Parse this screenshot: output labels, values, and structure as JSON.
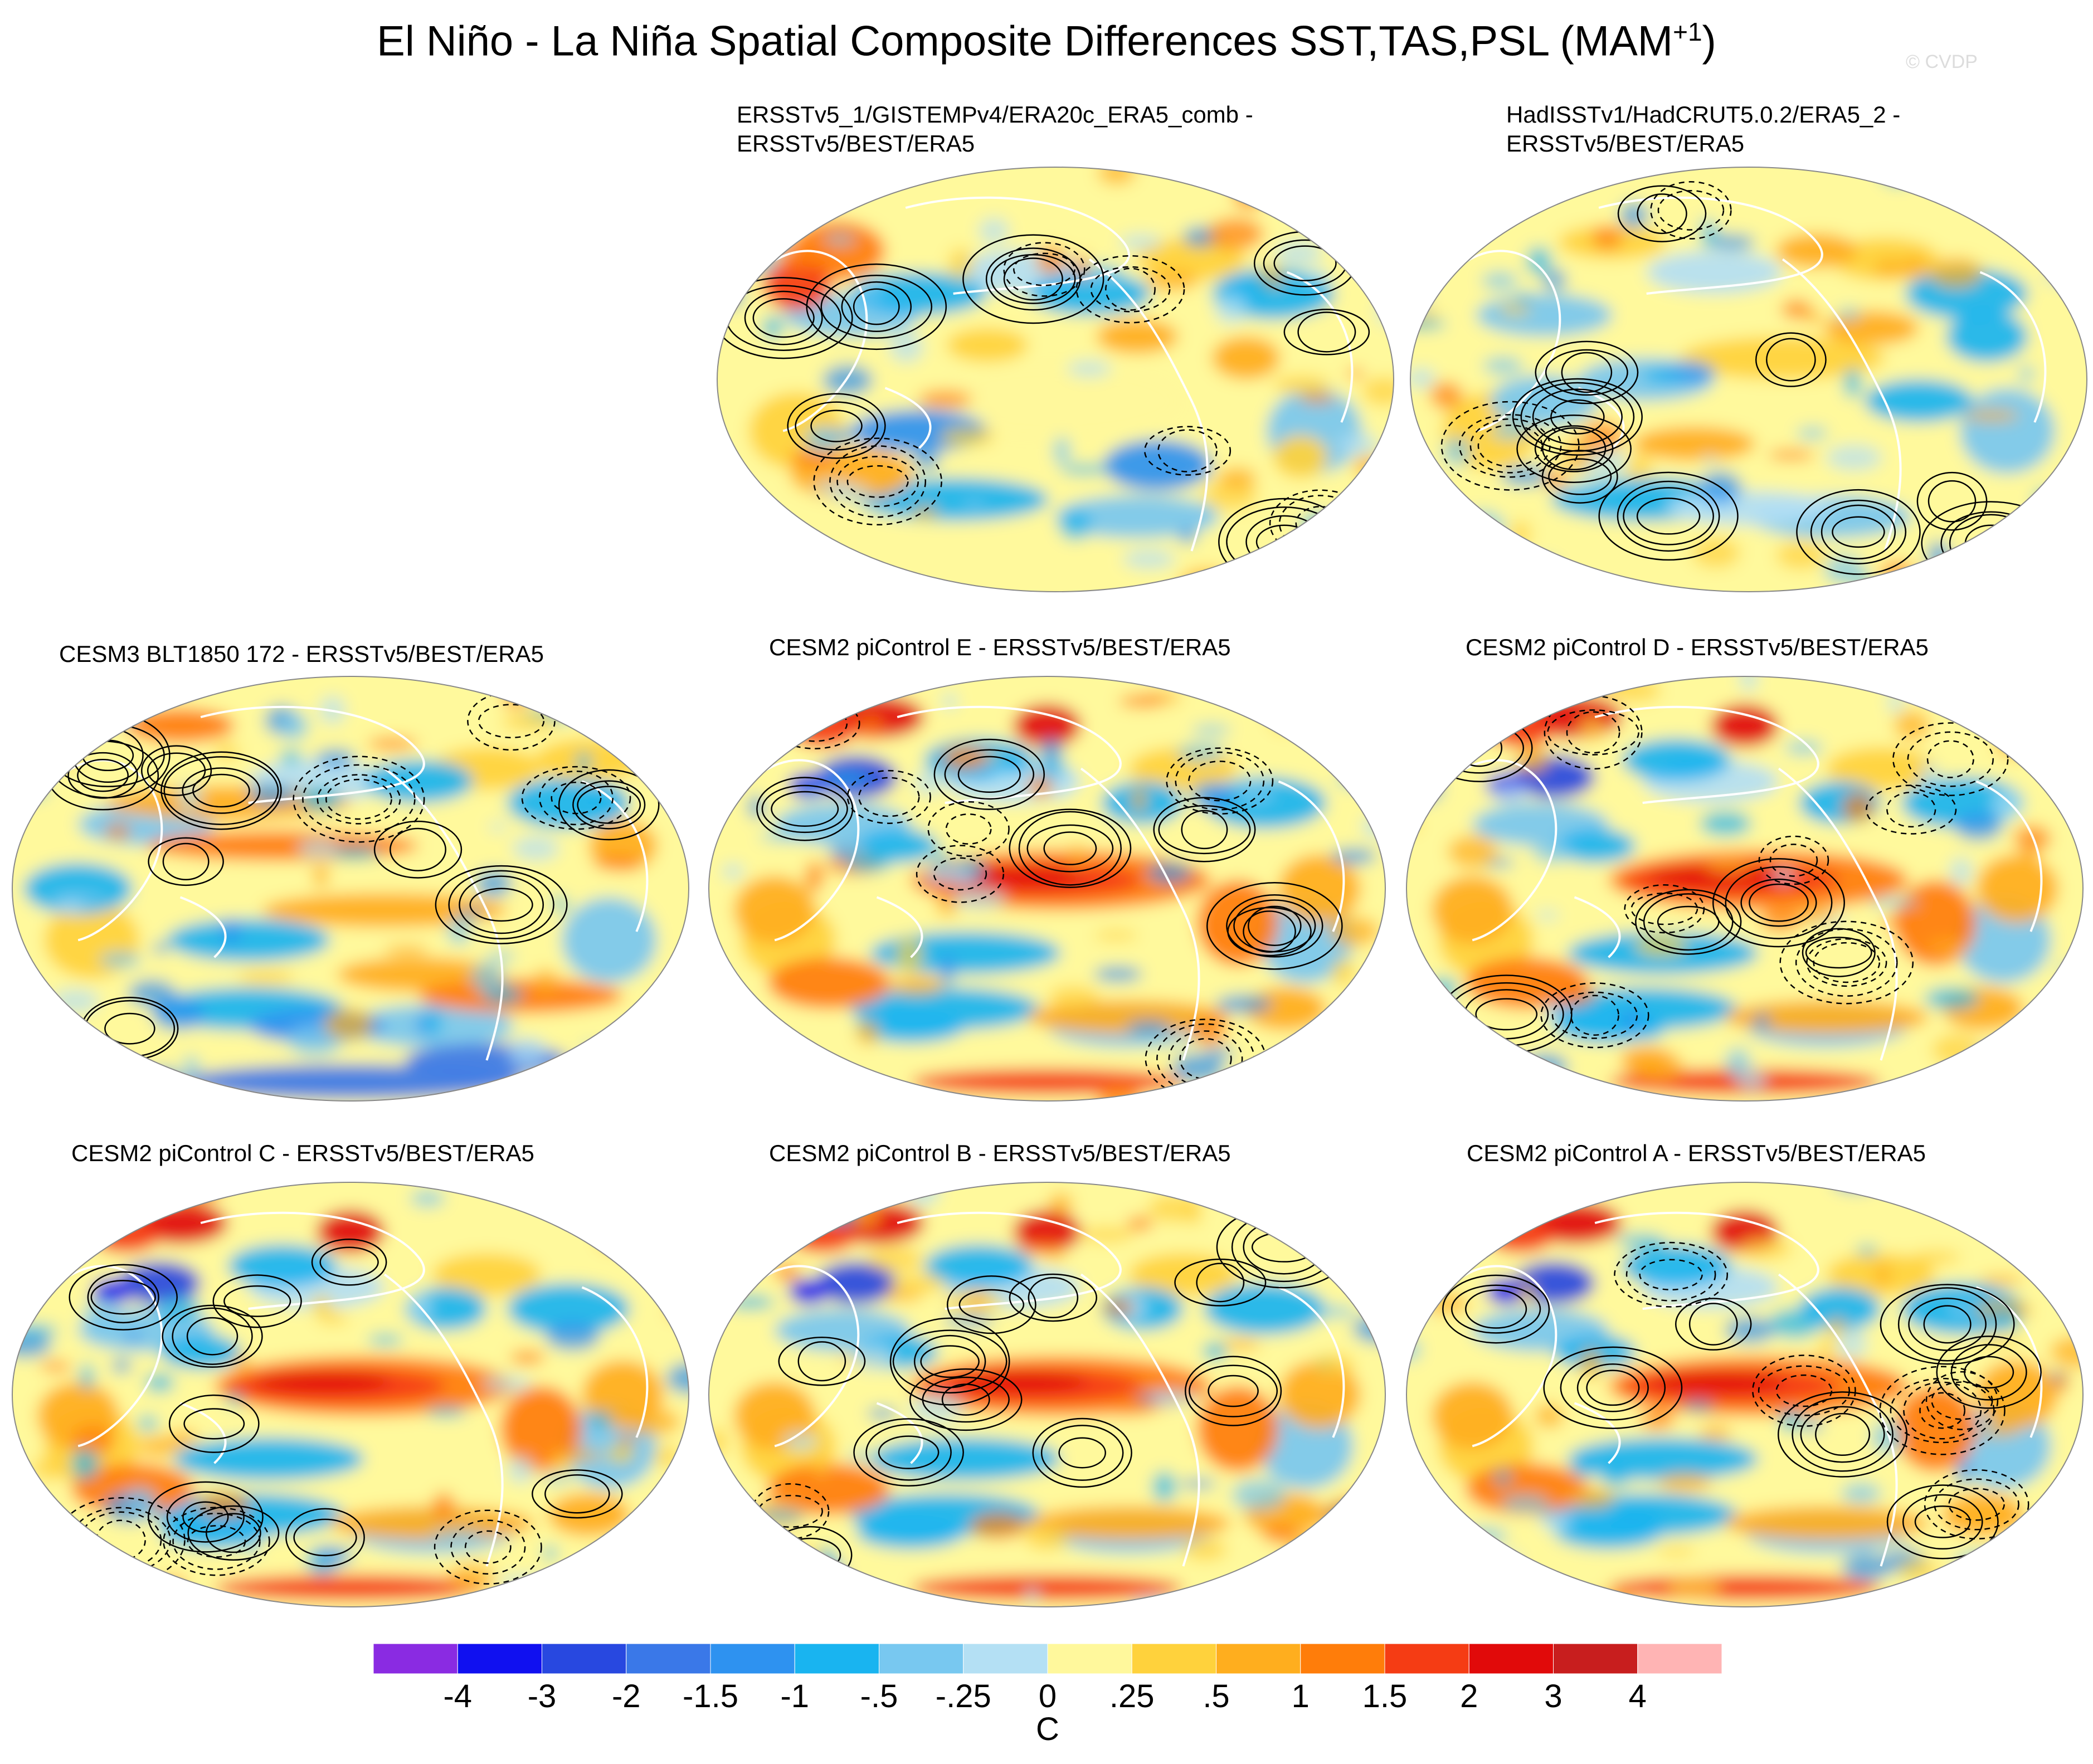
{
  "title": {
    "main": "El Niño - La Niña Spatial Composite Differences SST,TAS,PSL (MAM",
    "sup": "+1",
    "close": ")"
  },
  "watermark": "© CVDP",
  "panels": [
    {
      "line1": "ERSSTv5_1/GISTEMPv4/ERA20c_ERA5_comb -",
      "line2": "ERSSTv5/BEST/ERA5",
      "style": "obs1"
    },
    {
      "line1": "HadISSTv1/HadCRUT5.0.2/ERA5_2 -",
      "line2": "ERSSTv5/BEST/ERA5",
      "style": "obs2"
    },
    {
      "line1": "CESM3 BLT1850 172 - ERSSTv5/BEST/ERA5",
      "line2": "",
      "style": "cesm3"
    },
    {
      "line1": "CESM2 piControl E - ERSSTv5/BEST/ERA5",
      "line2": "",
      "style": "cesm2"
    },
    {
      "line1": "CESM2 piControl D - ERSSTv5/BEST/ERA5",
      "line2": "",
      "style": "cesm2"
    },
    {
      "line1": "CESM2 piControl C - ERSSTv5/BEST/ERA5",
      "line2": "",
      "style": "cesm2"
    },
    {
      "line1": "CESM2 piControl B - ERSSTv5/BEST/ERA5",
      "line2": "",
      "style": "cesm2"
    },
    {
      "line1": "CESM2 piControl A - ERSSTv5/BEST/ERA5",
      "line2": "",
      "style": "cesm2"
    }
  ],
  "colorbar": {
    "unit": "C",
    "tick_labels": [
      "-4",
      "-3",
      "-2",
      "-1.5",
      "-1",
      "-.5",
      "-.25",
      "0",
      ".25",
      ".5",
      "1",
      "1.5",
      "2",
      "3",
      "4"
    ],
    "colors": [
      "#8a2be2",
      "#1010f0",
      "#2848e0",
      "#3a78e8",
      "#2e92f0",
      "#19b4f0",
      "#78c8f0",
      "#b4e0f4",
      "#fff89c",
      "#ffd23c",
      "#ffae1e",
      "#ff7d0a",
      "#f53c14",
      "#e10a0a",
      "#c81e1e",
      "#ffb4b4"
    ],
    "land_color": "#ffffff",
    "psl_contours": "black, dashed for negative"
  }
}
